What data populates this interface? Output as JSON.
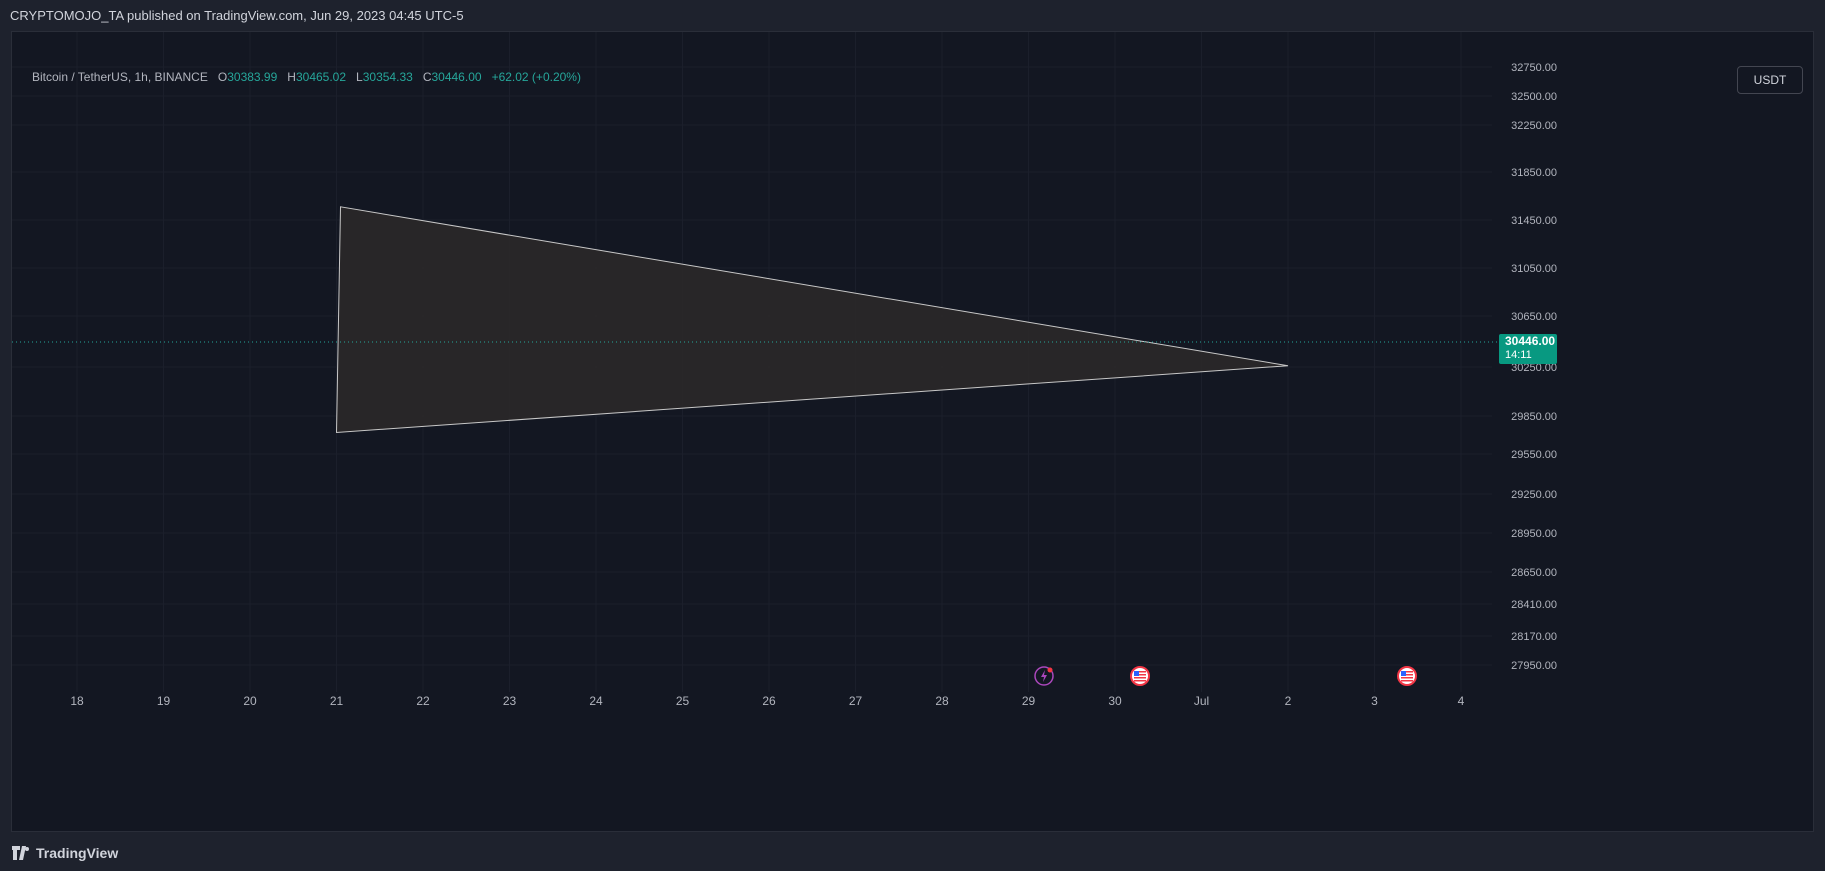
{
  "header": {
    "publish_line": "CRYPTOMOJO_TA published on TradingView.com, Jun 29, 2023 04:45 UTC-5"
  },
  "legend": {
    "symbol": "Bitcoin / TetherUS, 1h, BINANCE",
    "o_label": "O",
    "o_value": "30383.99",
    "h_label": "H",
    "h_value": "30465.02",
    "l_label": "L",
    "l_value": "30354.33",
    "c_label": "C",
    "c_value": "30446.00",
    "change": "+62.02 (+0.20%)"
  },
  "currency_button": "USDT",
  "price_tag": {
    "price": "30446.00",
    "countdown": "14:11"
  },
  "footer": {
    "brand": "TradingView"
  },
  "colors": {
    "up": "#26a69a",
    "down": "#ef5350",
    "background": "#131722",
    "triangle_fill": "#2b2829",
    "triangle_stroke": "#c8c8c8",
    "accent": "#089981"
  },
  "chart_data": {
    "type": "candlestick",
    "x_ticks": [
      "18",
      "19",
      "20",
      "21",
      "22",
      "23",
      "24",
      "25",
      "26",
      "27",
      "28",
      "29",
      "30",
      "Jul",
      "2",
      "3",
      "4"
    ],
    "y_ticks": [
      32750,
      32500,
      32250,
      31850,
      31450,
      31050,
      30650,
      30250,
      29850,
      29550,
      29250,
      28950,
      28650,
      28410,
      28170,
      27950
    ],
    "last_price": 30446.0,
    "triangle": [
      {
        "date": "Jun 21",
        "price": 31560
      },
      {
        "date": "Jun 21",
        "price": 29720
      },
      {
        "date": "Jul 2",
        "price": 30260
      }
    ],
    "candles": [],
    "event_icons": [
      "lightning-icon",
      "us-flag-icon",
      "us-flag-icon"
    ]
  }
}
